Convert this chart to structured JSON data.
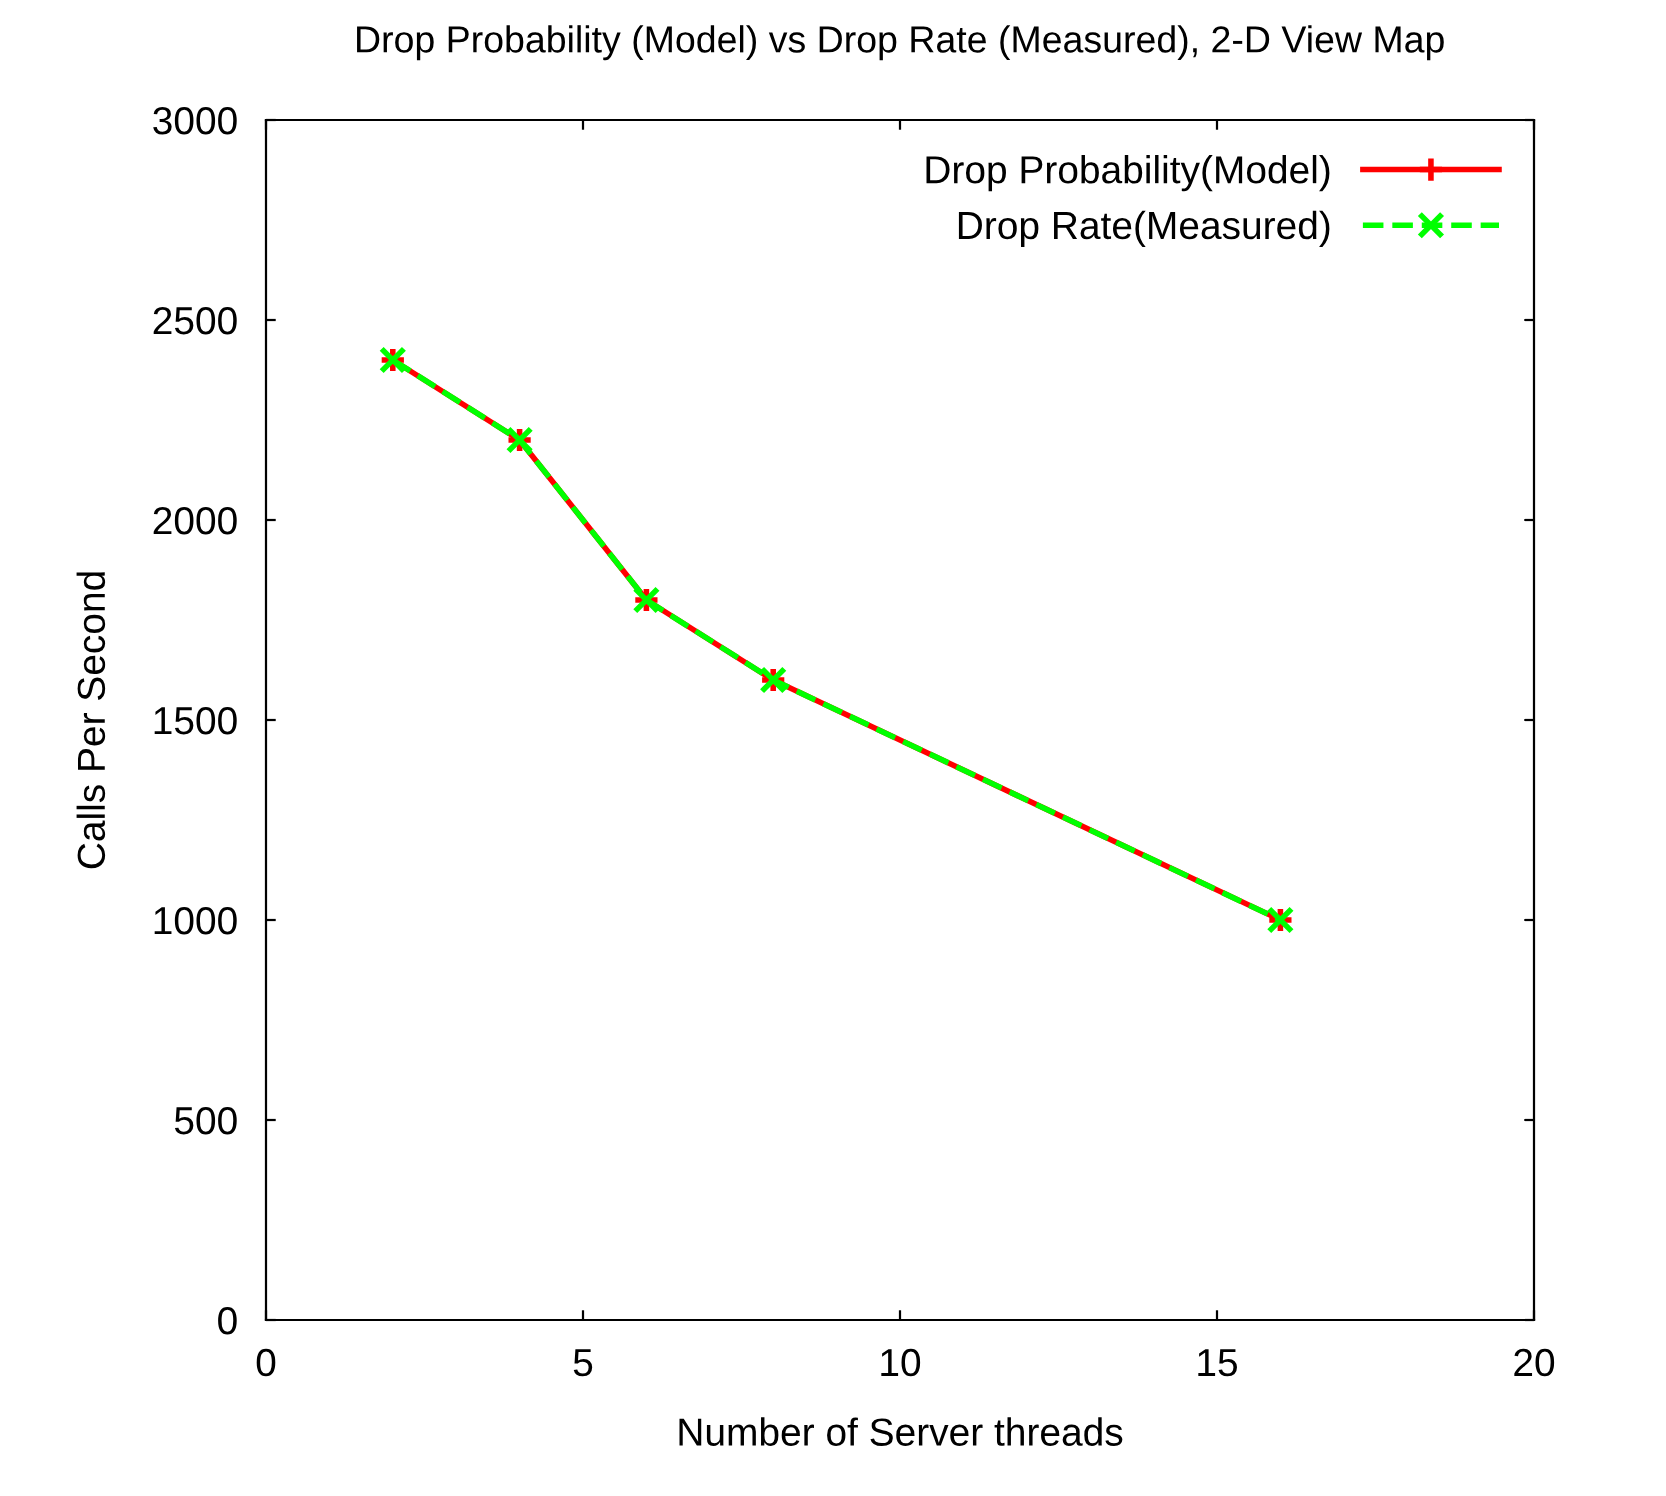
{
  "chart_data": {
    "type": "line",
    "title": "Drop Probability (Model) vs Drop Rate (Measured), 2-D View Map",
    "xlabel": "Number of Server threads",
    "ylabel": "Calls Per Second",
    "x": [
      2,
      4,
      6,
      8,
      16
    ],
    "series": [
      {
        "name": "Drop Probability(Model)",
        "color": "#ff0000",
        "values": [
          2400,
          2200,
          1800,
          1600,
          1000
        ],
        "marker": "plus",
        "line_style": "solid"
      },
      {
        "name": "Drop Rate(Measured)",
        "color": "#00ff00",
        "values": [
          2400,
          2200,
          1800,
          1600,
          1000
        ],
        "marker": "cross",
        "line_style": "dashed"
      }
    ],
    "xlim": [
      0,
      20
    ],
    "xticks": [
      0,
      5,
      10,
      15,
      20
    ],
    "ylim": [
      0,
      3000
    ],
    "yticks": [
      0,
      500,
      1000,
      1500,
      2000,
      2500,
      3000
    ],
    "grid": false,
    "legend": "top right"
  }
}
